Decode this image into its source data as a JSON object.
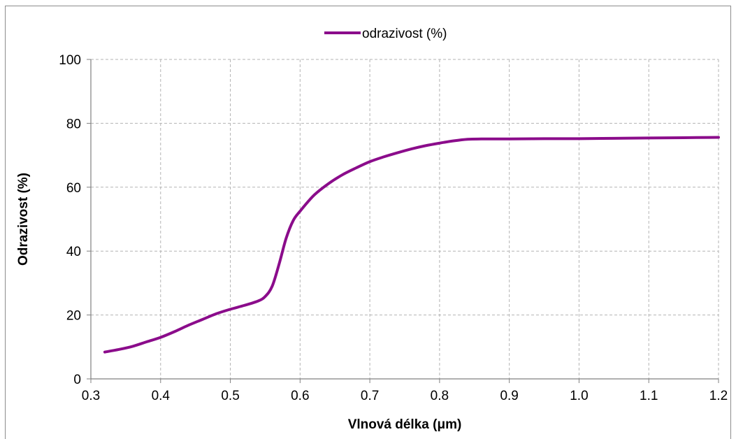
{
  "chart_data": {
    "type": "line",
    "xlabel": "Vlnová délka (μm)",
    "ylabel": "Odrazivost (%)",
    "xlim": [
      0.3,
      1.2
    ],
    "ylim": [
      0,
      100
    ],
    "x_ticks": [
      "0.3",
      "0.4",
      "0.5",
      "0.6",
      "0.7",
      "0.8",
      "0.9",
      "1.0",
      "1.1",
      "1.2"
    ],
    "y_ticks": [
      "0",
      "20",
      "40",
      "60",
      "80",
      "100"
    ],
    "grid": true,
    "legend_position": "top-center",
    "series": [
      {
        "name": "odrazivost (%)",
        "color": "#8b0c8b",
        "x": [
          0.32,
          0.34,
          0.36,
          0.38,
          0.4,
          0.42,
          0.44,
          0.46,
          0.48,
          0.5,
          0.52,
          0.54,
          0.55,
          0.56,
          0.57,
          0.58,
          0.59,
          0.6,
          0.62,
          0.64,
          0.66,
          0.68,
          0.7,
          0.72,
          0.74,
          0.76,
          0.78,
          0.8,
          0.82,
          0.84,
          0.86,
          0.9,
          0.95,
          1.0,
          1.05,
          1.1,
          1.15,
          1.2
        ],
        "y": [
          8.4,
          9.2,
          10.2,
          11.6,
          13.0,
          14.8,
          16.8,
          18.6,
          20.4,
          21.8,
          23.0,
          24.4,
          25.8,
          29.0,
          36.0,
          44.0,
          49.5,
          52.5,
          57.5,
          61.0,
          63.8,
          66.0,
          68.0,
          69.5,
          70.8,
          72.0,
          73.0,
          73.8,
          74.5,
          75.0,
          75.1,
          75.1,
          75.2,
          75.2,
          75.3,
          75.4,
          75.5,
          75.6
        ]
      }
    ]
  }
}
